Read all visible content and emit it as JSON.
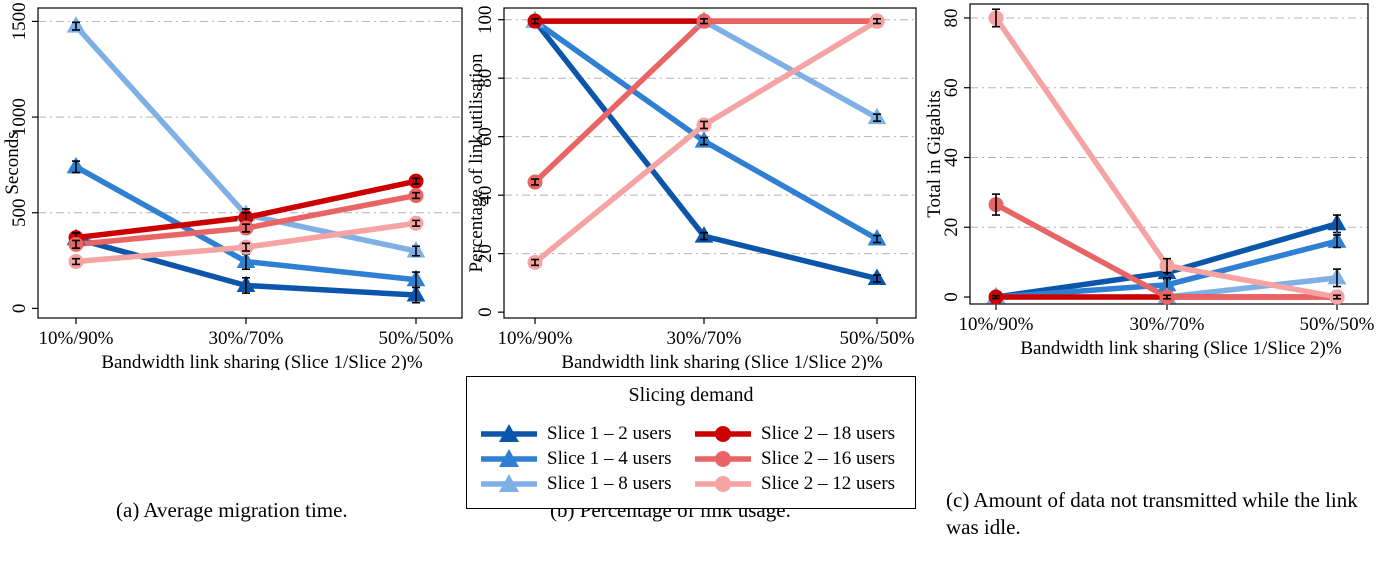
{
  "chart_data": [
    {
      "type": "line",
      "caption": "(a) Average migration time.",
      "xlabel": "Bandwidth link sharing (Slice 1/Slice 2)%",
      "ylabel": "Seconds",
      "categories": [
        "10%/90%",
        "30%/70%",
        "50%/50%"
      ],
      "ylim": [
        -50,
        1570
      ],
      "yticks": [
        0,
        500,
        1000,
        1500
      ],
      "grid": true,
      "series": [
        {
          "name": "Slice 1 – 2 users",
          "values": [
            365,
            120,
            70
          ],
          "err": [
            30,
            40,
            40
          ]
        },
        {
          "name": "Slice 1 – 4 users",
          "values": [
            740,
            245,
            150
          ],
          "err": [
            30,
            40,
            40
          ]
        },
        {
          "name": "Slice 1 – 8 users",
          "values": [
            1475,
            490,
            300
          ],
          "err": [
            20,
            30,
            25
          ]
        },
        {
          "name": "Slice 2 – 18 users",
          "values": [
            370,
            475,
            665
          ],
          "err": [
            25,
            25,
            15
          ]
        },
        {
          "name": "Slice 2 – 16 users",
          "values": [
            335,
            420,
            590
          ],
          "err": [
            20,
            20,
            15
          ]
        },
        {
          "name": "Slice 2 – 12 users",
          "values": [
            245,
            320,
            445
          ],
          "err": [
            15,
            20,
            15
          ]
        }
      ]
    },
    {
      "type": "line",
      "caption": "(b) Percentage of link usage.",
      "xlabel": "Bandwidth link sharing (Slice 1/Slice 2)%",
      "ylabel": "Percentage of link utilisation",
      "categories": [
        "10%/90%",
        "30%/70%",
        "50%/50%"
      ],
      "ylim": [
        -2,
        104
      ],
      "yticks": [
        0,
        20,
        40,
        60,
        80,
        100
      ],
      "grid": true,
      "series": [
        {
          "name": "Slice 1 – 2 users",
          "values": [
            99.5,
            26,
            11.5
          ],
          "err": [
            0.8,
            1.2,
            1.2
          ]
        },
        {
          "name": "Slice 1 – 4 users",
          "values": [
            99.5,
            58.5,
            25
          ],
          "err": [
            0.8,
            1.2,
            1.2
          ]
        },
        {
          "name": "Slice 1 – 8 users",
          "values": [
            99.5,
            99.5,
            66.5
          ],
          "err": [
            0.8,
            0.8,
            1.2
          ]
        },
        {
          "name": "Slice 2 – 18 users",
          "values": [
            99.5,
            99.5,
            99.5
          ],
          "err": [
            0.8,
            0.8,
            0.8
          ]
        },
        {
          "name": "Slice 2 – 16 users",
          "values": [
            44.5,
            99.5,
            99.5
          ],
          "err": [
            1,
            0.8,
            0.8
          ]
        },
        {
          "name": "Slice 2 – 12 users",
          "values": [
            17,
            64,
            99.5
          ],
          "err": [
            1,
            1.2,
            0.8
          ]
        }
      ]
    },
    {
      "type": "line",
      "caption": "(c) Amount of data not transmitted while the link was idle.",
      "xlabel": "Bandwidth link sharing (Slice 1/Slice 2)%",
      "ylabel": "Total in Gigabits",
      "categories": [
        "10%/90%",
        "30%/70%",
        "50%/50%"
      ],
      "ylim": [
        -2,
        84
      ],
      "yticks": [
        0,
        20,
        40,
        60,
        80
      ],
      "grid": true,
      "series": [
        {
          "name": "Slice 1 – 2 users",
          "values": [
            0,
            7,
            21
          ],
          "err": [
            0.5,
            2,
            2.5
          ]
        },
        {
          "name": "Slice 1 – 4 users",
          "values": [
            0,
            3.5,
            16
          ],
          "err": [
            0.5,
            2,
            1.8
          ]
        },
        {
          "name": "Slice 1 – 8 users",
          "values": [
            0,
            0,
            5.5
          ],
          "err": [
            0.5,
            0.5,
            2.5
          ]
        },
        {
          "name": "Slice 2 – 18 users",
          "values": [
            0,
            0,
            0
          ],
          "err": [
            0.4,
            0.4,
            0.4
          ]
        },
        {
          "name": "Slice 2 – 16 users",
          "values": [
            26.5,
            0,
            0
          ],
          "err": [
            3,
            0.5,
            0.5
          ]
        },
        {
          "name": "Slice 2 – 12 users",
          "values": [
            80,
            9,
            0
          ],
          "err": [
            2.5,
            2,
            0.5
          ]
        }
      ]
    }
  ],
  "legend": {
    "title": "Slicing demand",
    "items": [
      {
        "name": "Slice 1 – 2 users",
        "marker": "triangle",
        "color": "#0b55aa"
      },
      {
        "name": "Slice 1 – 4 users",
        "marker": "triangle",
        "color": "#2f7fd2"
      },
      {
        "name": "Slice 1 – 8 users",
        "marker": "triangle",
        "color": "#7eb0e6"
      },
      {
        "name": "Slice 2 – 18 users",
        "marker": "circle",
        "color": "#cc0000"
      },
      {
        "name": "Slice 2 – 16 users",
        "marker": "circle",
        "color": "#e96464"
      },
      {
        "name": "Slice 2 – 12 users",
        "marker": "circle",
        "color": "#f5a3a3"
      }
    ]
  }
}
